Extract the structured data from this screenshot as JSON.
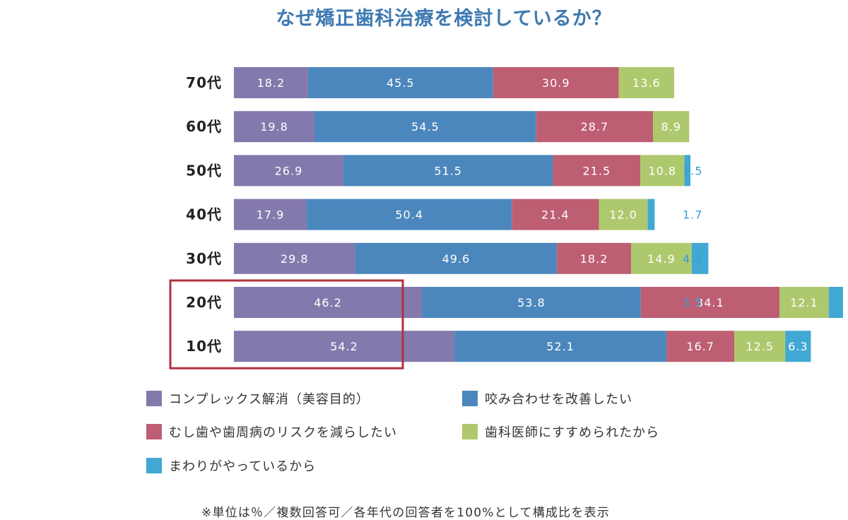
{
  "colors": {
    "series": [
      "#8479ad",
      "#4b87bd",
      "#bd5e72",
      "#aec96d",
      "#40a8d2"
    ],
    "highlight": "#b1303f",
    "title": "#3e79b1",
    "outside_label": "#3a9fcf"
  },
  "chart_data": {
    "type": "bar",
    "orientation": "horizontal",
    "stacked": true,
    "title": "なぜ矯正歯科治療を検討しているか？",
    "categories": [
      "70代",
      "60代",
      "50代",
      "40代",
      "30代",
      "20代",
      "10代"
    ],
    "series": [
      {
        "name": "コンプレックス解消（美容目的）",
        "values": [
          18.2,
          19.8,
          26.9,
          17.9,
          29.8,
          46.2,
          54.2
        ]
      },
      {
        "name": "咬み合わせを改善したい",
        "values": [
          45.5,
          54.5,
          51.5,
          50.4,
          49.6,
          53.8,
          52.1
        ]
      },
      {
        "name": "むし歯や歯周病のリスクを減らしたい",
        "values": [
          30.9,
          28.7,
          21.5,
          21.4,
          18.2,
          34.1,
          16.7
        ]
      },
      {
        "name": "歯科医師にすすめられたから",
        "values": [
          13.6,
          8.9,
          10.8,
          12.0,
          14.9,
          12.1,
          12.5
        ]
      },
      {
        "name": "まわりがやっているから",
        "values": [
          null,
          null,
          1.5,
          1.7,
          4.1,
          3.5,
          6.3
        ]
      }
    ],
    "highlighted_categories": [
      "20代",
      "10代"
    ],
    "legend_position": "bottom",
    "grid": false,
    "footnote": "※単位は％／複数回答可／各年代の回答者を100%として構成比を表示"
  }
}
